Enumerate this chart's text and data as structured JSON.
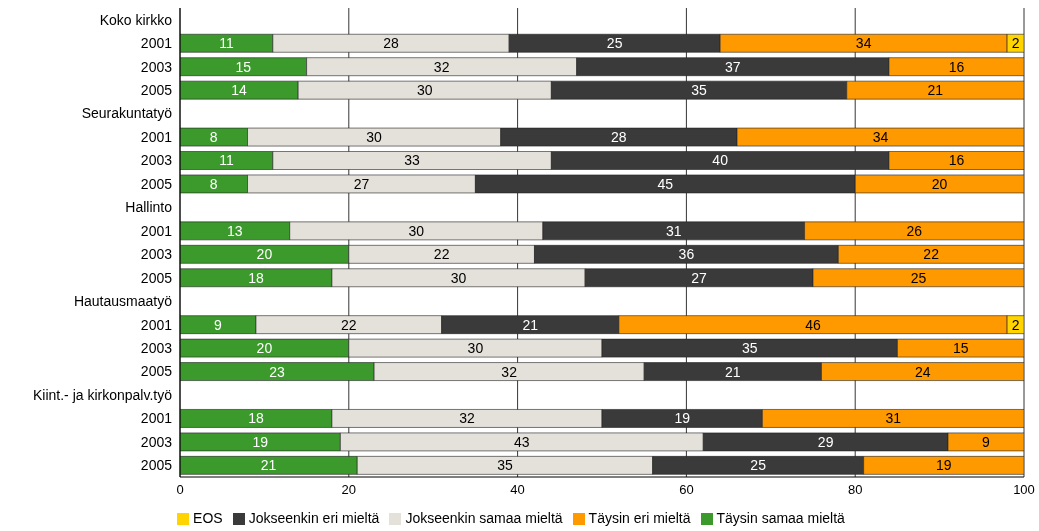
{
  "chart_data": {
    "type": "bar",
    "orientation": "horizontal",
    "stacked": true,
    "data_labels": true,
    "grid": "x",
    "legend": "bottom",
    "categories": [
      "Koko kirkko",
      "2001",
      "2003",
      "2005",
      "Seurakuntatyö",
      "2001",
      "2003",
      "2005",
      "Hallinto",
      "2001",
      "2003",
      "2005",
      "Hautausmaatyö",
      "2001",
      "2003",
      "2005",
      "Kiint.- ja kirkonpalv.työ",
      "2001",
      "2003",
      "2005"
    ],
    "xlim": [
      0,
      100
    ],
    "xticks": [
      0,
      20,
      40,
      60,
      80,
      100
    ],
    "series": [
      {
        "name": "Täysin samaa mieltä",
        "color": "#3c9a2c",
        "values": [
          null,
          11,
          15,
          14,
          null,
          8,
          11,
          8,
          null,
          13,
          20,
          18,
          null,
          9,
          20,
          23,
          null,
          18,
          19,
          21
        ]
      },
      {
        "name": "Jokseenkin samaa mieltä",
        "color": "#e4e0da",
        "values": [
          null,
          28,
          32,
          30,
          null,
          30,
          33,
          27,
          null,
          30,
          22,
          30,
          null,
          22,
          30,
          32,
          null,
          32,
          43,
          35
        ]
      },
      {
        "name": "Jokseenkin eri mieltä",
        "color": "#3a3a3a",
        "values": [
          null,
          25,
          37,
          35,
          null,
          28,
          40,
          45,
          null,
          31,
          36,
          27,
          null,
          21,
          35,
          21,
          null,
          19,
          29,
          25
        ]
      },
      {
        "name": "Täysin eri mieltä",
        "color": "#ff9900",
        "values": [
          null,
          34,
          16,
          21,
          null,
          34,
          16,
          20,
          null,
          26,
          22,
          25,
          null,
          46,
          15,
          24,
          null,
          31,
          9,
          19
        ]
      },
      {
        "name": "EOS",
        "color": "#ffd400",
        "values": [
          null,
          2,
          null,
          null,
          null,
          null,
          null,
          null,
          null,
          null,
          null,
          null,
          null,
          2,
          null,
          null,
          null,
          null,
          null,
          null
        ]
      }
    ]
  }
}
